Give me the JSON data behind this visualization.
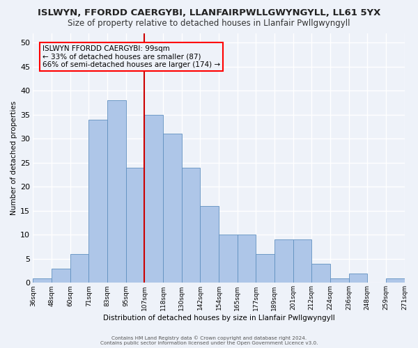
{
  "title": "ISLWYN, FFORDD CAERGYBI, LLANFAIRPWLLGWYNGYLL, LL61 5YX",
  "subtitle": "Size of property relative to detached houses in Llanfair Pwllgwyngyll",
  "xlabel": "Distribution of detached houses by size in Llanfair Pwllgwyngyll",
  "ylabel": "Number of detached properties",
  "bar_values": [
    1,
    3,
    6,
    34,
    38,
    24,
    35,
    31,
    24,
    16,
    10,
    10,
    6,
    9,
    9,
    4,
    1,
    2,
    0,
    1
  ],
  "bar_labels": [
    "36sqm",
    "48sqm",
    "60sqm",
    "71sqm",
    "83sqm",
    "95sqm",
    "107sqm",
    "118sqm",
    "130sqm",
    "142sqm",
    "154sqm",
    "165sqm",
    "177sqm",
    "189sqm",
    "201sqm",
    "212sqm",
    "224sqm",
    "236sqm",
    "248sqm",
    "259sqm",
    "271sqm"
  ],
  "bar_color": "#aec6e8",
  "bar_edge_color": "#6090c0",
  "vline_color": "#cc0000",
  "annotation_box_text": "ISLWYN FFORDD CAERGYBI: 99sqm\n← 33% of detached houses are smaller (87)\n66% of semi-detached houses are larger (174) →",
  "footer_line1": "Contains HM Land Registry data © Crown copyright and database right 2024.",
  "footer_line2": "Contains public sector information licensed under the Open Government Licence v3.0.",
  "ylim": [
    0,
    52
  ],
  "yticks": [
    0,
    5,
    10,
    15,
    20,
    25,
    30,
    35,
    40,
    45,
    50
  ],
  "background_color": "#eef2f9",
  "grid_color": "#ffffff",
  "title_fontsize": 9.5,
  "subtitle_fontsize": 8.5
}
